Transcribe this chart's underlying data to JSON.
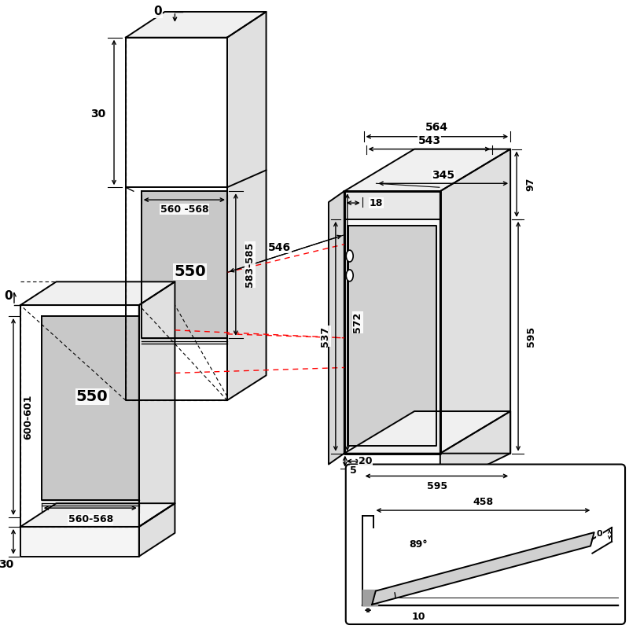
{
  "bg_color": "#ffffff",
  "line_color": "#000000",
  "gray_fill": "#c8c8c8",
  "red_dashed": "#ff0000",
  "dimensions": {
    "top_0_label": "0",
    "left_0_label": "0",
    "dim_30_top": "30",
    "dim_30_bot": "30",
    "dim_583_585": "583-585",
    "dim_560_568_top": "560 -568",
    "dim_550_top": "550",
    "dim_600_601": "600-601",
    "dim_560_568_bot": "560-568",
    "dim_550_bot": "550",
    "dim_564": "564",
    "dim_543": "543",
    "dim_546": "546",
    "dim_345": "345",
    "dim_18": "18",
    "dim_97": "97",
    "dim_537": "537",
    "dim_572": "572",
    "dim_595_h": "595",
    "dim_5": "5",
    "dim_20": "20",
    "dim_595_w": "595",
    "dim_458": "458",
    "dim_89": "89°",
    "dim_0_small": "0",
    "dim_10": "10"
  }
}
